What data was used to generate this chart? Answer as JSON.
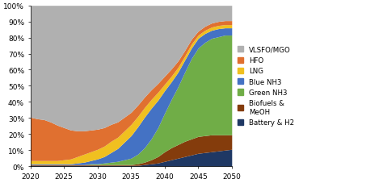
{
  "x": [
    2020,
    2021,
    2022,
    2023,
    2024,
    2025,
    2026,
    2027,
    2028,
    2029,
    2030,
    2031,
    2032,
    2033,
    2034,
    2035,
    2036,
    2037,
    2038,
    2039,
    2040,
    2041,
    2042,
    2043,
    2044,
    2045,
    2046,
    2047,
    2048,
    2049,
    2050
  ],
  "Battery_H2": [
    0.5,
    0.5,
    0.5,
    0.5,
    0.5,
    0.5,
    0.5,
    0.5,
    0.5,
    0.5,
    0.5,
    0.5,
    0.5,
    0.5,
    0.5,
    0.5,
    0.5,
    1.0,
    1.5,
    2.0,
    3.0,
    4.0,
    5.0,
    6.0,
    7.0,
    8.0,
    8.5,
    9.0,
    9.5,
    10.0,
    10.5
  ],
  "Biofuels_MeOH": [
    0.5,
    0.5,
    0.5,
    0.5,
    0.5,
    0.5,
    0.5,
    0.5,
    0.5,
    0.5,
    0.5,
    0.5,
    0.5,
    0.5,
    0.5,
    0.5,
    1.0,
    1.5,
    2.5,
    4.0,
    6.0,
    7.5,
    8.5,
    9.5,
    10.0,
    10.5,
    10.5,
    10.5,
    10.0,
    9.5,
    9.0
  ],
  "Green_NH3": [
    0.0,
    0.0,
    0.0,
    0.0,
    0.0,
    0.0,
    0.0,
    0.0,
    0.0,
    0.5,
    0.5,
    1.0,
    1.5,
    2.0,
    3.0,
    4.0,
    6.0,
    9.0,
    13.0,
    18.0,
    24.0,
    30.0,
    36.0,
    43.0,
    50.0,
    55.0,
    58.0,
    60.0,
    61.0,
    62.0,
    62.0
  ],
  "Blue_NH3": [
    0.5,
    0.5,
    0.5,
    0.5,
    0.5,
    0.5,
    0.5,
    1.0,
    1.5,
    2.0,
    3.0,
    4.0,
    6.0,
    8.0,
    11.0,
    14.0,
    17.0,
    19.0,
    19.0,
    17.0,
    14.0,
    11.0,
    9.0,
    7.5,
    6.5,
    6.0,
    5.5,
    5.0,
    5.0,
    4.5,
    4.5
  ],
  "LNG": [
    2.0,
    2.0,
    2.0,
    2.0,
    2.0,
    2.5,
    3.0,
    4.0,
    5.0,
    5.5,
    6.0,
    6.5,
    7.0,
    7.0,
    7.0,
    7.0,
    6.5,
    6.0,
    5.5,
    5.0,
    4.0,
    3.5,
    3.0,
    2.5,
    2.5,
    2.0,
    2.0,
    2.0,
    2.0,
    2.0,
    2.0
  ],
  "HFO": [
    27.0,
    26.0,
    25.5,
    24.0,
    22.0,
    20.0,
    18.0,
    16.0,
    14.5,
    13.5,
    12.5,
    11.5,
    10.5,
    9.5,
    8.5,
    7.5,
    7.0,
    6.5,
    6.0,
    5.5,
    5.0,
    4.5,
    4.0,
    3.5,
    3.0,
    2.5,
    2.5,
    2.5,
    2.5,
    2.5,
    2.5
  ],
  "VLSFO_MGO": [
    69.5,
    70.5,
    71.0,
    72.5,
    74.5,
    76.0,
    77.5,
    78.0,
    78.0,
    77.5,
    77.0,
    76.0,
    74.0,
    72.5,
    69.5,
    66.5,
    62.0,
    57.0,
    52.5,
    48.5,
    44.0,
    39.5,
    34.5,
    28.0,
    21.0,
    16.0,
    13.0,
    11.0,
    10.0,
    9.5,
    9.5
  ],
  "colors": {
    "VLSFO_MGO": "#b0b0b0",
    "HFO": "#e07030",
    "LNG": "#f0c020",
    "Blue_NH3": "#4472c4",
    "Green_NH3": "#70ad47",
    "Biofuels_MeOH": "#843c0c",
    "Battery_H2": "#1f3864"
  },
  "labels": {
    "VLSFO_MGO": "VLSFO/MGO",
    "HFO": "HFO",
    "LNG": "LNG",
    "Blue_NH3": "Blue NH3",
    "Green_NH3": "Green NH3",
    "Biofuels_MeOH": "Biofuels &\nMeOH",
    "Battery_H2": "Battery & H2"
  },
  "xlim": [
    2020,
    2050
  ],
  "ylim": [
    0,
    100
  ],
  "yticks": [
    0,
    10,
    20,
    30,
    40,
    50,
    60,
    70,
    80,
    90,
    100
  ],
  "ytick_labels": [
    "0%",
    "10%",
    "20%",
    "30%",
    "40%",
    "50%",
    "60%",
    "70%",
    "80%",
    "90%",
    "100%"
  ],
  "xticks": [
    2020,
    2025,
    2030,
    2035,
    2040,
    2045,
    2050
  ],
  "background_color": "#ffffff"
}
